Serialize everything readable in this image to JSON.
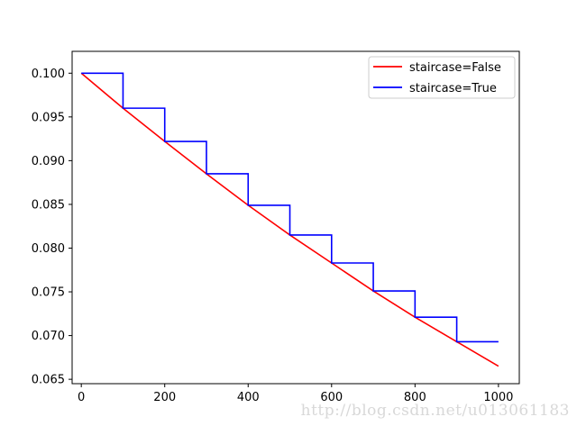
{
  "chart_data": {
    "type": "line",
    "title": "",
    "xlabel": "",
    "ylabel": "",
    "xlim": [
      -22,
      1050
    ],
    "ylim": [
      0.0645,
      0.1025
    ],
    "grid": false,
    "legend_position": "top-right",
    "x_ticks": [
      0,
      200,
      400,
      600,
      800,
      1000
    ],
    "y_ticks": [
      0.065,
      0.07,
      0.075,
      0.08,
      0.085,
      0.09,
      0.095,
      0.1
    ],
    "y_tick_labels": [
      "0.065",
      "0.070",
      "0.075",
      "0.080",
      "0.085",
      "0.090",
      "0.095",
      "0.100"
    ],
    "series": [
      {
        "name": "staircase=False",
        "color": "#ff0000",
        "x": [
          0,
          100,
          200,
          300,
          400,
          500,
          600,
          700,
          800,
          900,
          1000
        ],
        "y": [
          0.1,
          0.096,
          0.0922,
          0.0885,
          0.0849,
          0.0815,
          0.0783,
          0.0751,
          0.0721,
          0.0693,
          0.0665
        ]
      },
      {
        "name": "staircase=True",
        "color": "#0000ff",
        "step": "post",
        "x": [
          0,
          100,
          200,
          300,
          400,
          500,
          600,
          700,
          800,
          900,
          1000
        ],
        "y": [
          0.1,
          0.096,
          0.0922,
          0.0885,
          0.0849,
          0.0815,
          0.0783,
          0.0751,
          0.0721,
          0.0693,
          0.0693
        ]
      }
    ]
  },
  "watermark": "http://blog.csdn.net/u013061183"
}
